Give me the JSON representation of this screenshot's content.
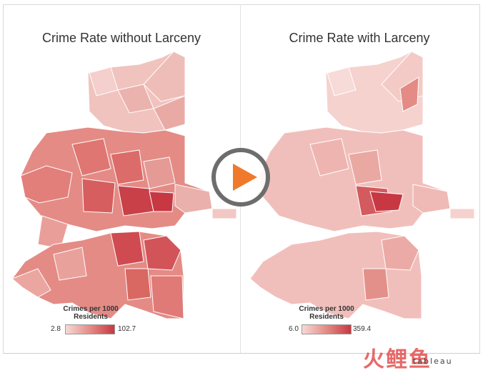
{
  "maps": [
    {
      "title": "Crime Rate without Larceny",
      "legend": {
        "title_line1": "Crimes per 1000",
        "title_line2": "Residents",
        "min": "2.8",
        "max": "102.7"
      }
    },
    {
      "title": "Crime Rate with Larceny",
      "legend": {
        "title_line1": "Crimes per 1000",
        "title_line2": "Residents",
        "min": "6.0",
        "max": "359.4"
      }
    }
  ],
  "colors": {
    "low": "#f7d9d6",
    "mid": "#e48b86",
    "high": "#c73842",
    "border": "#ffffff"
  },
  "play_icon": "play-icon",
  "watermark": "火鲤鱼",
  "branding": "tableau"
}
